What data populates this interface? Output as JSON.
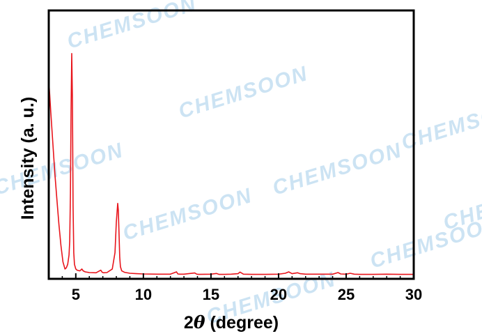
{
  "watermark": "CHEMSOON",
  "chart_data": {
    "type": "line",
    "title": "",
    "xlabel_prefix": "2",
    "xlabel_symbol": "θ",
    "xlabel_suffix": " (degree)",
    "ylabel": "Intensity (a. u.)",
    "xlim": [
      3,
      30
    ],
    "ylim": [
      0,
      100
    ],
    "y_ticks_shown": false,
    "x_ticks": [
      5,
      10,
      15,
      20,
      25,
      30
    ],
    "x_tick_labels": [
      "5",
      "10",
      "15",
      "20",
      "25",
      "30"
    ],
    "grid": false,
    "legend": "none",
    "series": [
      {
        "color": "#e8141b",
        "x": [
          3.0,
          3.15,
          3.3,
          3.45,
          3.6,
          3.75,
          3.9,
          4.05,
          4.2,
          4.3,
          4.4,
          4.5,
          4.55,
          4.6,
          4.65,
          4.7,
          4.75,
          4.8,
          4.85,
          4.9,
          5.0,
          5.1,
          5.3,
          5.45,
          5.55,
          5.7,
          6.0,
          6.5,
          6.85,
          6.95,
          7.05,
          7.3,
          7.7,
          7.9,
          8.0,
          8.1,
          8.15,
          8.2,
          8.25,
          8.3,
          8.4,
          8.6,
          9.0,
          9.5,
          10.0,
          11.0,
          12.0,
          12.45,
          12.55,
          12.7,
          13.0,
          13.8,
          13.95,
          14.1,
          15.0,
          15.4,
          15.6,
          16.0,
          16.5,
          17.0,
          17.15,
          17.4,
          18.0,
          19.0,
          20.0,
          20.5,
          20.75,
          21.0,
          21.4,
          21.6,
          22.0,
          23.0,
          24.0,
          24.4,
          24.6,
          25.0,
          25.3,
          25.6,
          26.0,
          27.0,
          28.0,
          29.0,
          30.0
        ],
        "y": [
          84,
          70,
          57,
          44,
          33,
          22,
          13,
          6,
          3.0,
          3.5,
          5,
          9,
          15,
          35,
          70,
          95,
          75,
          30,
          10,
          5,
          3,
          2.5,
          2.2,
          3.0,
          2.2,
          1.8,
          1.5,
          1.4,
          2.5,
          1.6,
          1.4,
          1.5,
          3,
          10,
          23,
          31,
          28,
          18,
          8,
          4,
          2.2,
          1.6,
          1.2,
          1.0,
          0.9,
          0.8,
          0.8,
          1.8,
          0.9,
          0.8,
          0.8,
          1.3,
          0.8,
          0.7,
          0.8,
          1.1,
          0.7,
          0.7,
          0.8,
          1.0,
          1.7,
          0.8,
          0.7,
          0.7,
          0.8,
          1.2,
          1.8,
          1.0,
          1.4,
          1.0,
          0.8,
          0.8,
          0.8,
          1.5,
          0.9,
          0.8,
          1.2,
          0.8,
          0.7,
          0.7,
          0.8,
          0.7,
          0.7
        ]
      }
    ]
  }
}
